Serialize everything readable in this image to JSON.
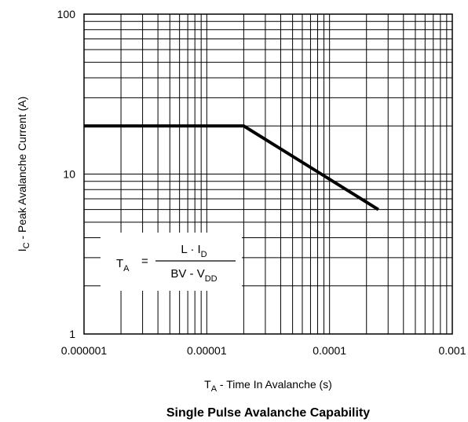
{
  "chart_data": {
    "type": "line",
    "title": "Single Pulse Avalanche Capability",
    "xlabel": {
      "main": "T",
      "sub": "A",
      "rest": " -  Time In Avalanche (s)"
    },
    "ylabel": {
      "main": "I",
      "sub": "C",
      "rest": " -  Peak Avalanche Current (A)"
    },
    "x_scale": "log",
    "y_scale": "log",
    "xlim": [
      1e-06,
      0.001
    ],
    "ylim": [
      1,
      100
    ],
    "x_ticks": [
      {
        "value": 1e-06,
        "label": "0.000001"
      },
      {
        "value": 1e-05,
        "label": "0.00001"
      },
      {
        "value": 0.0001,
        "label": "0.0001"
      },
      {
        "value": 0.001,
        "label": "0.001"
      }
    ],
    "y_ticks": [
      {
        "value": 1,
        "label": "1"
      },
      {
        "value": 10,
        "label": "10"
      },
      {
        "value": 100,
        "label": "100"
      }
    ],
    "grid": true,
    "series": [
      {
        "x": [
          1e-06,
          2e-05,
          0.00025
        ],
        "y": [
          20,
          20,
          6
        ]
      }
    ],
    "annotation": {
      "lhs_main": "T",
      "lhs_sub": "A",
      "equals": "=",
      "num_main": "L · I",
      "num_sub": "D",
      "den_main": "BV  -  V",
      "den_sub": "DD"
    }
  }
}
